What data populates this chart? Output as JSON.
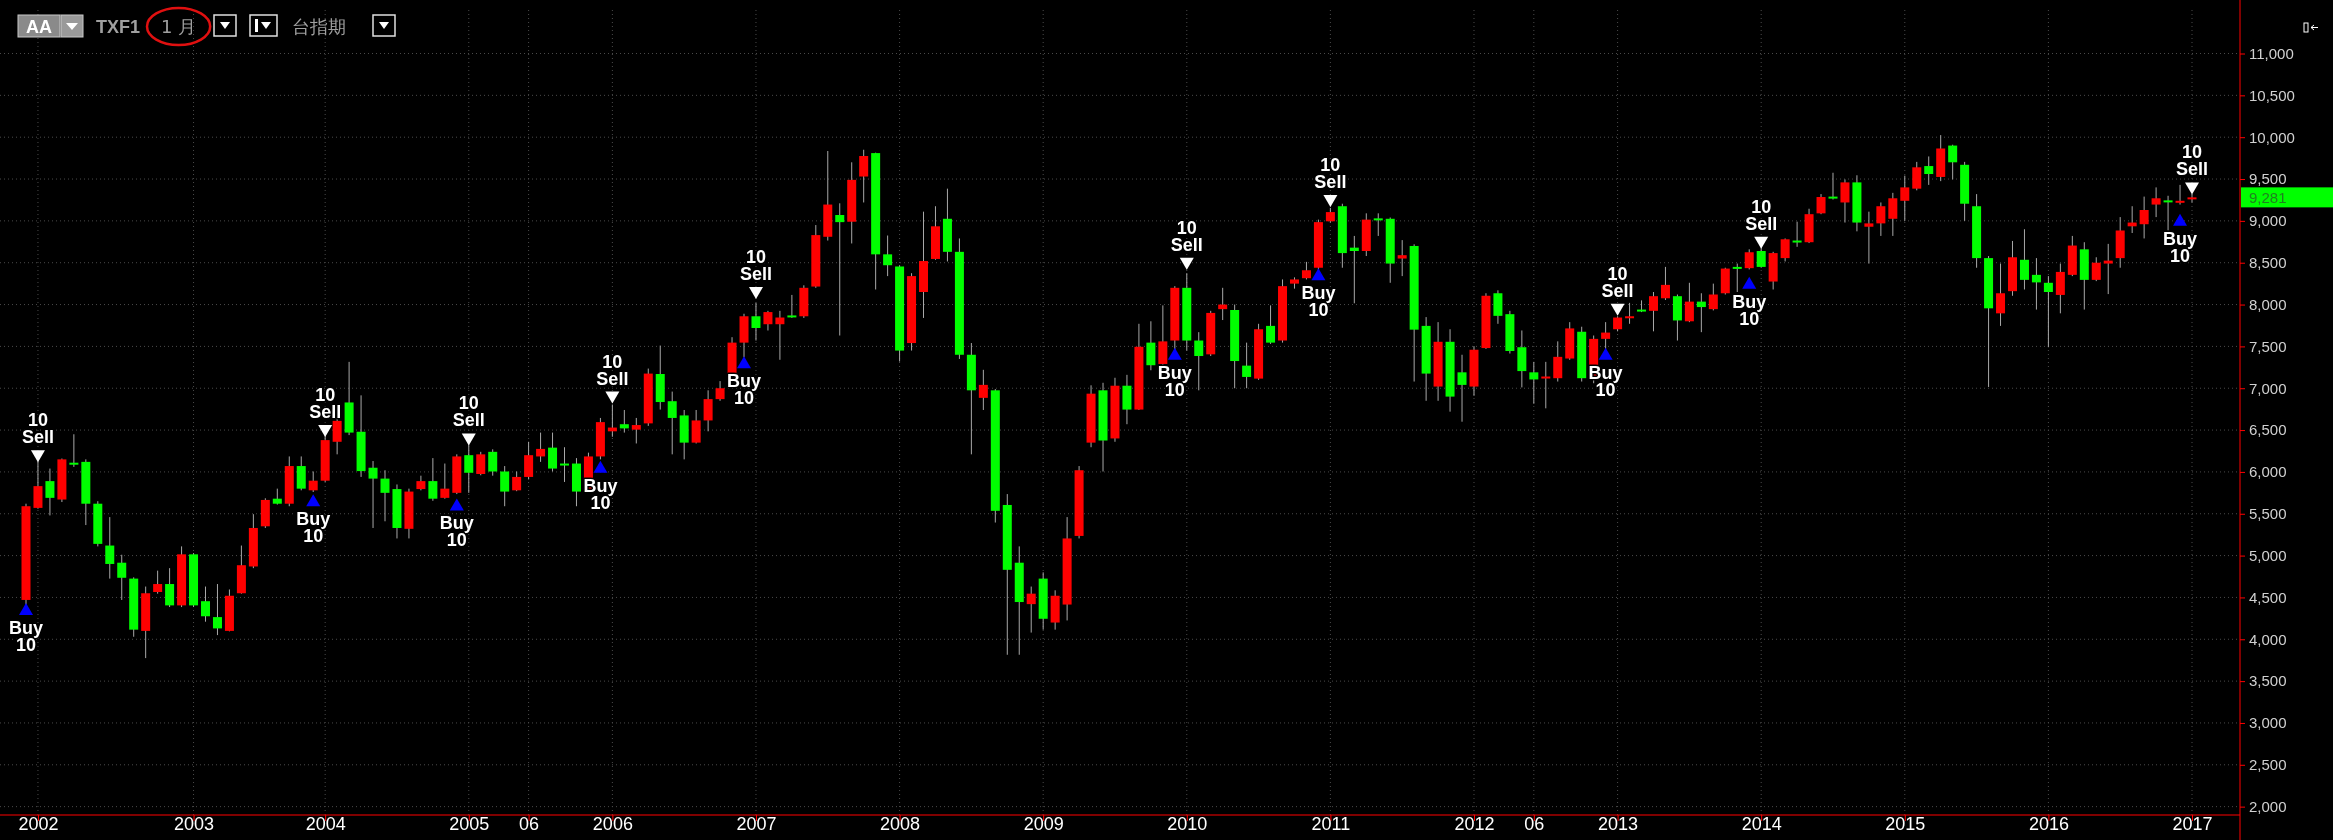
{
  "chart_data": {
    "type": "candlestick",
    "categories": [
      null,
      "2002",
      null,
      null,
      null,
      null,
      null,
      null,
      null,
      null,
      null,
      null,
      null,
      null,
      "2003",
      null,
      null,
      null,
      null,
      null,
      null,
      null,
      null,
      null,
      null,
      "2004",
      null,
      null,
      null,
      null,
      null,
      null,
      null,
      null,
      null,
      null,
      null,
      "2005",
      null,
      null,
      null,
      null,
      "06",
      null,
      null,
      null,
      null,
      null,
      null,
      "2006",
      null,
      null,
      null,
      null,
      null,
      null,
      null,
      null,
      null,
      null,
      null,
      "2007",
      null,
      null,
      null,
      null,
      null,
      null,
      null,
      null,
      null,
      null,
      null,
      "2008",
      null,
      null,
      null,
      null,
      null,
      null,
      null,
      null,
      null,
      null,
      null,
      "2009",
      null,
      null,
      null,
      null,
      null,
      null,
      null,
      null,
      null,
      null,
      null,
      "2010",
      null,
      null,
      null,
      null,
      null,
      null,
      null,
      null,
      null,
      null,
      null,
      "2011",
      null,
      null,
      null,
      null,
      null,
      null,
      null,
      null,
      null,
      null,
      null,
      "2012",
      null,
      null,
      null,
      null,
      "06",
      null,
      null,
      null,
      null,
      null,
      null,
      "2013",
      null,
      null,
      null,
      null,
      null,
      null,
      null,
      null,
      null,
      null,
      null,
      "2014",
      null,
      null,
      null,
      null,
      null,
      null,
      null,
      null,
      null,
      null,
      null,
      "2015",
      null,
      null,
      null,
      null,
      null,
      null,
      null,
      null,
      null,
      null,
      null,
      "2016",
      null,
      null,
      null,
      null,
      null,
      null,
      null,
      null,
      null,
      null,
      null,
      "2017"
    ],
    "ohlc": [
      [
        4470,
        5620,
        4400,
        5590
      ],
      [
        5570,
        6130,
        5560,
        5830
      ],
      [
        5890,
        6040,
        5480,
        5690
      ],
      [
        5670,
        6160,
        5640,
        6150
      ],
      [
        6110,
        6450,
        6060,
        6100
      ],
      [
        6120,
        6150,
        5365,
        5620
      ],
      [
        5620,
        5650,
        5110,
        5140
      ],
      [
        5120,
        5460,
        4725,
        4900
      ],
      [
        4915,
        5010,
        4470,
        4735
      ],
      [
        4725,
        4740,
        4030,
        4115
      ],
      [
        4100,
        4630,
        3775,
        4550
      ],
      [
        4565,
        4820,
        4545,
        4660
      ],
      [
        4660,
        4850,
        4385,
        4405
      ],
      [
        4405,
        5110,
        4385,
        5015
      ],
      [
        5015,
        5030,
        4385,
        4405
      ],
      [
        4455,
        4630,
        4210,
        4275
      ],
      [
        4265,
        4660,
        4050,
        4130
      ],
      [
        4100,
        4595,
        4095,
        4520
      ],
      [
        4550,
        5120,
        4545,
        4885
      ],
      [
        4870,
        5495,
        4850,
        5330
      ],
      [
        5350,
        5685,
        5330,
        5665
      ],
      [
        5680,
        5800,
        5610,
        5620
      ],
      [
        5620,
        6185,
        5590,
        6070
      ],
      [
        6070,
        6185,
        5780,
        5800
      ],
      [
        5780,
        6005,
        5760,
        5895
      ],
      [
        5895,
        6440,
        5880,
        6380
      ],
      [
        6360,
        6710,
        6210,
        6610
      ],
      [
        6830,
        7315,
        6440,
        6470
      ],
      [
        6480,
        6915,
        5940,
        6010
      ],
      [
        6050,
        6130,
        5330,
        5920
      ],
      [
        5920,
        6020,
        5410,
        5750
      ],
      [
        5795,
        5850,
        5205,
        5330
      ],
      [
        5320,
        5800,
        5205,
        5765
      ],
      [
        5795,
        5955,
        5780,
        5890
      ],
      [
        5890,
        6165,
        5655,
        5680
      ],
      [
        5690,
        6100,
        5680,
        5800
      ],
      [
        5750,
        6210,
        5735,
        6185
      ],
      [
        6200,
        6330,
        5750,
        5990
      ],
      [
        5975,
        6240,
        5960,
        6210
      ],
      [
        6240,
        6270,
        5955,
        6005
      ],
      [
        6005,
        6070,
        5590,
        5765
      ],
      [
        5780,
        6005,
        5770,
        5940
      ],
      [
        5940,
        6360,
        5910,
        6200
      ],
      [
        6185,
        6470,
        6120,
        6275
      ],
      [
        6290,
        6470,
        6005,
        6040
      ],
      [
        6100,
        6295,
        5880,
        6090
      ],
      [
        6100,
        6165,
        5590,
        5765
      ],
      [
        5765,
        6230,
        5750,
        6185
      ],
      [
        6185,
        6645,
        6150,
        6595
      ],
      [
        6485,
        6805,
        6420,
        6530
      ],
      [
        6570,
        6740,
        6470,
        6520
      ],
      [
        6505,
        6645,
        6340,
        6560
      ],
      [
        6580,
        7235,
        6550,
        7175
      ],
      [
        7170,
        7510,
        6745,
        6835
      ],
      [
        6845,
        6960,
        6210,
        6645
      ],
      [
        6675,
        6740,
        6150,
        6350
      ],
      [
        6350,
        6740,
        6340,
        6615
      ],
      [
        6615,
        6975,
        6485,
        6870
      ],
      [
        6870,
        7085,
        6850,
        7000
      ],
      [
        7160,
        7610,
        7130,
        7545
      ],
      [
        7545,
        7890,
        7370,
        7860
      ],
      [
        7860,
        8020,
        7570,
        7720
      ],
      [
        7765,
        7925,
        7690,
        7910
      ],
      [
        7765,
        7925,
        7340,
        7845
      ],
      [
        7870,
        8115,
        7840,
        7860
      ],
      [
        7860,
        8230,
        7840,
        8200
      ],
      [
        8215,
        8950,
        8200,
        8830
      ],
      [
        8810,
        9835,
        8765,
        9195
      ],
      [
        9070,
        9210,
        7630,
        8985
      ],
      [
        8990,
        9700,
        8730,
        9490
      ],
      [
        9530,
        9850,
        9220,
        9775
      ],
      [
        9810,
        9815,
        8180,
        8600
      ],
      [
        8600,
        8825,
        8340,
        8470
      ],
      [
        8455,
        8470,
        7320,
        7450
      ],
      [
        7540,
        8375,
        7450,
        8340
      ],
      [
        8150,
        9110,
        7840,
        8520
      ],
      [
        8545,
        9175,
        8535,
        8935
      ],
      [
        9025,
        9385,
        8515,
        8630
      ],
      [
        8630,
        8790,
        7350,
        7400
      ],
      [
        7400,
        7540,
        6210,
        6975
      ],
      [
        6885,
        7220,
        6740,
        7040
      ],
      [
        6975,
        6990,
        5395,
        5535
      ],
      [
        5605,
        5735,
        3815,
        4830
      ],
      [
        4915,
        5110,
        3815,
        4445
      ],
      [
        4420,
        4630,
        4080,
        4545
      ],
      [
        4725,
        4800,
        4115,
        4245
      ],
      [
        4200,
        4585,
        4115,
        4520
      ],
      [
        4415,
        5460,
        4225,
        5205
      ],
      [
        5235,
        6070,
        5205,
        6020
      ],
      [
        6350,
        7035,
        6295,
        6935
      ],
      [
        6975,
        7065,
        6005,
        6375
      ],
      [
        6400,
        7125,
        6360,
        7030
      ],
      [
        7030,
        7160,
        6570,
        6745
      ],
      [
        6745,
        7770,
        6740,
        7495
      ],
      [
        7545,
        7800,
        7215,
        7275
      ],
      [
        7290,
        7990,
        7215,
        7560
      ],
      [
        7570,
        8220,
        7450,
        8200
      ],
      [
        8200,
        8375,
        7450,
        7570
      ],
      [
        7570,
        7670,
        6975,
        7385
      ],
      [
        7405,
        7925,
        7385,
        7900
      ],
      [
        7945,
        8200,
        7815,
        8000
      ],
      [
        7935,
        8000,
        7000,
        7325
      ],
      [
        7270,
        7545,
        7000,
        7135
      ],
      [
        7115,
        7770,
        7100,
        7705
      ],
      [
        7745,
        7990,
        7530,
        7545
      ],
      [
        7570,
        8300,
        7545,
        8220
      ],
      [
        8250,
        8325,
        8190,
        8300
      ],
      [
        8315,
        8510,
        8300,
        8410
      ],
      [
        8440,
        9015,
        8410,
        8985
      ],
      [
        8995,
        9155,
        8980,
        9105
      ],
      [
        9175,
        9205,
        8440,
        8615
      ],
      [
        8680,
        8820,
        8015,
        8640
      ],
      [
        8640,
        9090,
        8580,
        9015
      ],
      [
        9030,
        9090,
        8820,
        9020
      ],
      [
        9025,
        9040,
        8260,
        8490
      ],
      [
        8550,
        8770,
        8340,
        8590
      ],
      [
        8700,
        8720,
        7080,
        7700
      ],
      [
        7745,
        7850,
        6850,
        7175
      ],
      [
        7020,
        7790,
        6850,
        7555
      ],
      [
        7555,
        7705,
        6720,
        6900
      ],
      [
        7190,
        7400,
        6600,
        7040
      ],
      [
        7020,
        7500,
        6910,
        7460
      ],
      [
        7480,
        8135,
        7470,
        8105
      ],
      [
        8135,
        8170,
        7770,
        7865
      ],
      [
        7885,
        7925,
        7415,
        7445
      ],
      [
        7490,
        7690,
        7010,
        7205
      ],
      [
        7190,
        7315,
        6815,
        7105
      ],
      [
        7125,
        7315,
        6760,
        7140
      ],
      [
        7120,
        7560,
        7080,
        7375
      ],
      [
        7355,
        7790,
        7340,
        7715
      ],
      [
        7675,
        7735,
        7080,
        7120
      ],
      [
        7120,
        7630,
        7060,
        7590
      ],
      [
        7590,
        7790,
        7470,
        7665
      ],
      [
        7705,
        7860,
        7680,
        7845
      ],
      [
        7840,
        8020,
        7770,
        7860
      ],
      [
        7940,
        8050,
        7910,
        7930
      ],
      [
        7925,
        8150,
        7680,
        8100
      ],
      [
        8075,
        8450,
        8055,
        8235
      ],
      [
        8100,
        8120,
        7570,
        7810
      ],
      [
        7800,
        8260,
        7790,
        8035
      ],
      [
        8035,
        8135,
        7670,
        7970
      ],
      [
        7945,
        8250,
        7930,
        8120
      ],
      [
        8135,
        8440,
        8120,
        8430
      ],
      [
        8450,
        8490,
        8150,
        8430
      ],
      [
        8435,
        8660,
        8420,
        8625
      ],
      [
        8640,
        8690,
        8440,
        8450
      ],
      [
        8275,
        8630,
        8180,
        8615
      ],
      [
        8555,
        8790,
        8515,
        8780
      ],
      [
        8765,
        8990,
        8690,
        8755
      ],
      [
        8745,
        9145,
        8735,
        9080
      ],
      [
        9090,
        9320,
        9080,
        9285
      ],
      [
        9290,
        9575,
        9255,
        9280
      ],
      [
        9220,
        9495,
        8980,
        9460
      ],
      [
        9460,
        9545,
        8875,
        8980
      ],
      [
        8930,
        9110,
        8490,
        8970
      ],
      [
        8970,
        9220,
        8820,
        9175
      ],
      [
        9025,
        9335,
        8820,
        9270
      ],
      [
        9240,
        9540,
        9000,
        9400
      ],
      [
        9385,
        9705,
        9365,
        9640
      ],
      [
        9655,
        9770,
        9430,
        9560
      ],
      [
        9525,
        10025,
        9475,
        9865
      ],
      [
        9900,
        9910,
        9495,
        9700
      ],
      [
        9670,
        9705,
        9000,
        9205
      ],
      [
        9175,
        9320,
        8440,
        8555
      ],
      [
        8555,
        8580,
        7015,
        7955
      ],
      [
        7895,
        8490,
        7745,
        8135
      ],
      [
        8160,
        8760,
        8105,
        8565
      ],
      [
        8535,
        8900,
        8180,
        8295
      ],
      [
        8355,
        8555,
        7940,
        8265
      ],
      [
        8260,
        8340,
        7490,
        8150
      ],
      [
        8115,
        8490,
        7895,
        8390
      ],
      [
        8355,
        8820,
        8340,
        8705
      ],
      [
        8660,
        8745,
        7940,
        8295
      ],
      [
        8295,
        8565,
        8280,
        8500
      ],
      [
        8490,
        8725,
        8125,
        8525
      ],
      [
        8555,
        9045,
        8440,
        8885
      ],
      [
        8935,
        9175,
        8855,
        8980
      ],
      [
        8960,
        9290,
        8790,
        9130
      ],
      [
        9195,
        9400,
        9045,
        9270
      ],
      [
        9245,
        9300,
        8885,
        9235
      ],
      [
        9220,
        9430,
        9195,
        9240
      ],
      [
        9270,
        9320,
        9220,
        9281
      ]
    ],
    "colors": [
      "#ff0000",
      "#ff0000",
      "#00ff00",
      "#ff0000",
      "#00ff00",
      "#00ff00",
      "#00ff00",
      "#00ff00",
      "#00ff00",
      "#00ff00",
      "#ff0000",
      "#ff0000",
      "#00ff00",
      "#ff0000",
      "#00ff00",
      "#00ff00",
      "#00ff00",
      "#ff0000",
      "#ff0000",
      "#ff0000",
      "#ff0000",
      "#00ff00",
      "#ff0000",
      "#00ff00",
      "#ff0000",
      "#ff0000",
      "#ff0000",
      "#00ff00",
      "#00ff00",
      "#00ff00",
      "#00ff00",
      "#00ff00",
      "#ff0000",
      "#ff0000",
      "#00ff00",
      "#ff0000",
      "#ff0000",
      "#00ff00",
      "#ff0000",
      "#00ff00",
      "#00ff00",
      "#ff0000",
      "#ff0000",
      "#ff0000",
      "#00ff00",
      "#00ff00",
      "#00ff00",
      "#ff0000",
      "#ff0000",
      "#ff0000",
      "#00ff00",
      "#ff0000",
      "#ff0000",
      "#00ff00",
      "#00ff00",
      "#00ff00",
      "#ff0000",
      "#ff0000",
      "#ff0000",
      "#ff0000",
      "#ff0000",
      "#00ff00",
      "#ff0000",
      "#ff0000",
      "#00ff00",
      "#ff0000",
      "#ff0000",
      "#ff0000",
      "#00ff00",
      "#ff0000",
      "#ff0000",
      "#00ff00",
      "#00ff00",
      "#00ff00",
      "#ff0000",
      "#ff0000",
      "#ff0000",
      "#00ff00",
      "#00ff00",
      "#00ff00",
      "#ff0000",
      "#00ff00",
      "#00ff00",
      "#00ff00",
      "#ff0000",
      "#00ff00",
      "#ff0000",
      "#ff0000",
      "#ff0000",
      "#ff0000",
      "#00ff00",
      "#ff0000",
      "#00ff00",
      "#ff0000",
      "#00ff00",
      "#ff0000",
      "#ff0000",
      "#00ff00",
      "#00ff00",
      "#ff0000",
      "#ff0000",
      "#00ff00",
      "#00ff00",
      "#ff0000",
      "#00ff00",
      "#ff0000",
      "#ff0000",
      "#ff0000",
      "#ff0000",
      "#ff0000",
      "#00ff00",
      "#00ff00",
      "#ff0000",
      "#00ff00",
      "#00ff00",
      "#ff0000",
      "#00ff00",
      "#00ff00",
      "#ff0000",
      "#00ff00",
      "#00ff00",
      "#ff0000",
      "#ff0000",
      "#00ff00",
      "#00ff00",
      "#00ff00",
      "#00ff00",
      "#ff0000",
      "#ff0000",
      "#ff0000",
      "#00ff00",
      "#ff0000",
      "#ff0000",
      "#ff0000",
      "#ff0000",
      "#00ff00",
      "#ff0000",
      "#ff0000",
      "#00ff00",
      "#ff0000",
      "#00ff00",
      "#ff0000",
      "#ff0000",
      "#00ff00",
      "#ff0000",
      "#00ff00",
      "#ff0000",
      "#ff0000",
      "#00ff00",
      "#ff0000",
      "#ff0000",
      "#00ff00",
      "#ff0000",
      "#00ff00",
      "#ff0000",
      "#ff0000",
      "#ff0000",
      "#ff0000",
      "#ff0000",
      "#00ff00",
      "#ff0000",
      "#00ff00",
      "#00ff00",
      "#00ff00",
      "#00ff00",
      "#ff0000",
      "#ff0000",
      "#00ff00",
      "#00ff00",
      "#00ff00",
      "#ff0000",
      "#ff0000",
      "#00ff00",
      "#ff0000",
      "#ff0000",
      "#ff0000",
      "#ff0000",
      "#ff0000",
      "#ff0000",
      "#00ff00",
      "#ff0000",
      "#ff0000"
    ],
    "series": [
      {
        "type": "scatter",
        "name": "Buy 10",
        "marker": "triangle",
        "color": "#0000ff",
        "values": [
          4350,
          null,
          null,
          null,
          null,
          null,
          null,
          null,
          null,
          null,
          null,
          null,
          null,
          null,
          null,
          null,
          null,
          null,
          null,
          null,
          null,
          null,
          null,
          null,
          5650,
          null,
          null,
          null,
          null,
          null,
          null,
          null,
          null,
          null,
          null,
          null,
          5600,
          null,
          null,
          null,
          null,
          null,
          null,
          null,
          null,
          null,
          null,
          null,
          6050,
          null,
          null,
          null,
          null,
          null,
          null,
          null,
          null,
          null,
          null,
          null,
          7300,
          null,
          null,
          null,
          null,
          null,
          null,
          null,
          null,
          null,
          null,
          null,
          null,
          null,
          null,
          null,
          null,
          null,
          null,
          null,
          null,
          null,
          null,
          null,
          null,
          null,
          null,
          null,
          null,
          null,
          null,
          null,
          null,
          null,
          null,
          null,
          7400,
          null,
          null,
          null,
          null,
          null,
          null,
          null,
          null,
          null,
          null,
          null,
          8350,
          null,
          null,
          null,
          null,
          null,
          null,
          null,
          null,
          null,
          null,
          null,
          null,
          null,
          null,
          null,
          null,
          null,
          null,
          null,
          null,
          null,
          null,
          null,
          7400,
          null,
          null,
          null,
          null,
          null,
          null,
          null,
          null,
          null,
          null,
          null,
          8250,
          null,
          null,
          null,
          null,
          null,
          null,
          null,
          null,
          null,
          null,
          null,
          null,
          null,
          null,
          null,
          null,
          null,
          null,
          null,
          null,
          null,
          null,
          null,
          null,
          null,
          null,
          null,
          null,
          null,
          null,
          null,
          null,
          null,
          null,
          null,
          9000,
          null
        ]
      },
      {
        "type": "scatter",
        "name": "10 Sell",
        "marker": "triangle",
        "color": "#ffffff",
        "values": [
          null,
          6200,
          null,
          null,
          null,
          null,
          null,
          null,
          null,
          null,
          null,
          null,
          null,
          null,
          null,
          null,
          null,
          null,
          null,
          null,
          null,
          null,
          null,
          null,
          null,
          6500,
          null,
          null,
          null,
          null,
          null,
          null,
          null,
          null,
          null,
          null,
          null,
          6400,
          null,
          null,
          null,
          null,
          null,
          null,
          null,
          null,
          null,
          null,
          null,
          6900,
          null,
          null,
          null,
          null,
          null,
          null,
          null,
          null,
          null,
          null,
          null,
          8150,
          null,
          null,
          null,
          null,
          null,
          null,
          null,
          null,
          null,
          null,
          null,
          null,
          null,
          null,
          null,
          null,
          null,
          null,
          null,
          null,
          null,
          null,
          null,
          null,
          null,
          null,
          null,
          null,
          null,
          null,
          null,
          null,
          null,
          null,
          null,
          8500,
          null,
          null,
          null,
          null,
          null,
          null,
          null,
          null,
          null,
          null,
          null,
          9250,
          null,
          null,
          null,
          null,
          null,
          null,
          null,
          null,
          null,
          null,
          null,
          null,
          null,
          null,
          null,
          null,
          null,
          null,
          null,
          null,
          null,
          null,
          null,
          7950,
          null,
          null,
          null,
          null,
          null,
          null,
          null,
          null,
          null,
          null,
          null,
          8750,
          null,
          null,
          null,
          null,
          null,
          null,
          null,
          null,
          null,
          null,
          null,
          null,
          null,
          null,
          null,
          null,
          null,
          null,
          null,
          null,
          null,
          null,
          null,
          null,
          null,
          null,
          null,
          null,
          null,
          null,
          null,
          null,
          null,
          null,
          null,
          9400
        ]
      }
    ],
    "ylim": [
      1900,
      11520
    ],
    "yticks": [
      {
        "value": 2000,
        "label": "2,000"
      },
      {
        "value": 2500,
        "label": "2,500"
      },
      {
        "value": 3000,
        "label": "3,000"
      },
      {
        "value": 3500,
        "label": "3,500"
      },
      {
        "value": 4000,
        "label": "4,000"
      },
      {
        "value": 4500,
        "label": "4,500"
      },
      {
        "value": 5000,
        "label": "5,000"
      },
      {
        "value": 5500,
        "label": "5,500"
      },
      {
        "value": 6000,
        "label": "6,000"
      },
      {
        "value": 6500,
        "label": "6,500"
      },
      {
        "value": 7000,
        "label": "7,000"
      },
      {
        "value": 7500,
        "label": "7,500"
      },
      {
        "value": 8000,
        "label": "8,000"
      },
      {
        "value": 8500,
        "label": "8,500"
      },
      {
        "value": 9000,
        "label": "9,000"
      },
      {
        "value": 9500,
        "label": "9,500"
      },
      {
        "value": 10000,
        "label": "10,000"
      },
      {
        "value": 10500,
        "label": "10,500"
      },
      {
        "value": 11000,
        "label": "11,000"
      }
    ],
    "grid": true,
    "annotations": [
      "AA",
      "TXF1",
      "1 月",
      "台指期",
      "9,281"
    ]
  }
}
